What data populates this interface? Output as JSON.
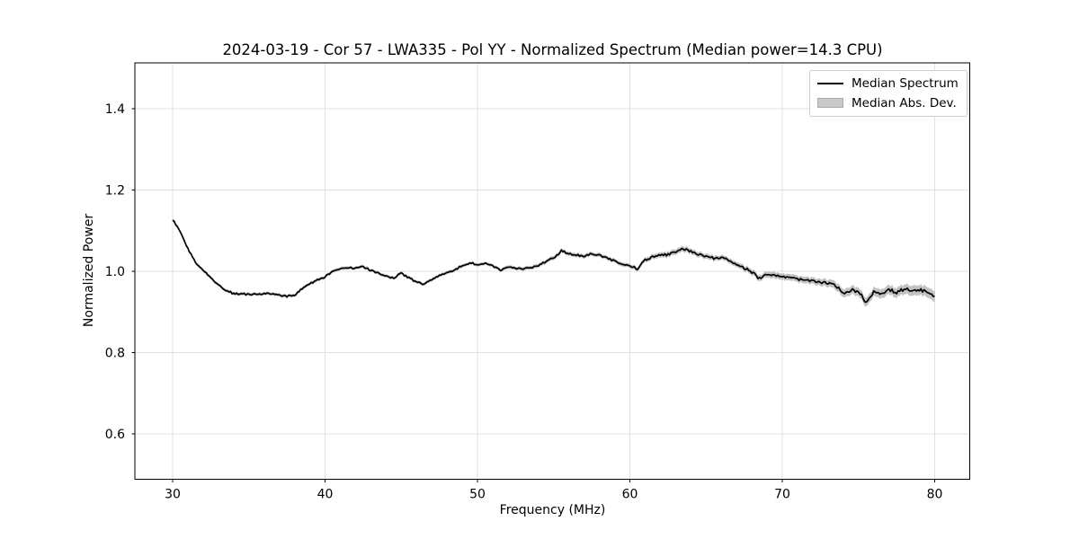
{
  "chart_data": {
    "type": "line",
    "title": "2024-03-19 - Cor 57 - LWA335 - Pol YY - Normalized Spectrum (Median power=14.3 CPU)",
    "xlabel": "Frequency (MHz)",
    "ylabel": "Normalized Power",
    "xlim": [
      27.5,
      82.3
    ],
    "ylim": [
      0.486,
      1.511
    ],
    "xticks": [
      30,
      40,
      50,
      60,
      70,
      80
    ],
    "xtick_labels": [
      "30",
      "40",
      "50",
      "60",
      "70",
      "80"
    ],
    "yticks": [
      0.6,
      0.8,
      1.0,
      1.2,
      1.4
    ],
    "ytick_labels": [
      "0.6",
      "0.8",
      "1.0",
      "1.2",
      "1.4"
    ],
    "grid": true,
    "legend_position": "upper right",
    "series": [
      {
        "name": "Median Spectrum",
        "kind": "line",
        "color": "#000000",
        "x": [
          30,
          30.5,
          31,
          31.5,
          32,
          32.5,
          33,
          33.5,
          34,
          34.5,
          35,
          35.5,
          36,
          36.5,
          37,
          37.5,
          38,
          38.5,
          39,
          39.5,
          40,
          40.5,
          41,
          41.5,
          42,
          42.5,
          43,
          43.5,
          44,
          44.5,
          45,
          45.5,
          46,
          46.5,
          47,
          47.5,
          48,
          48.5,
          49,
          49.5,
          50,
          50.5,
          51,
          51.5,
          52,
          52.5,
          53,
          53.5,
          54,
          54.5,
          55,
          55.5,
          56,
          56.5,
          57,
          57.5,
          58,
          58.5,
          59,
          59.5,
          60,
          60.5,
          61,
          61.5,
          62,
          62.5,
          63,
          63.5,
          64,
          64.5,
          65,
          65.5,
          66,
          66.5,
          67,
          67.5,
          68,
          68.5,
          69,
          69.5,
          70,
          70.5,
          71,
          71.5,
          72,
          72.5,
          73,
          73.5,
          74,
          74.5,
          75,
          75.5,
          76,
          76.5,
          77,
          77.5,
          78,
          78.5,
          79,
          79.5,
          80
        ],
        "y": [
          1.127,
          1.098,
          1.056,
          1.022,
          1.003,
          0.986,
          0.966,
          0.952,
          0.945,
          0.944,
          0.943,
          0.944,
          0.945,
          0.946,
          0.943,
          0.938,
          0.942,
          0.956,
          0.97,
          0.978,
          0.986,
          1.001,
          1.007,
          1.01,
          1.008,
          1.012,
          1.002,
          0.996,
          0.988,
          0.982,
          0.996,
          0.984,
          0.973,
          0.969,
          0.98,
          0.989,
          0.997,
          1.004,
          1.013,
          1.02,
          1.017,
          1.02,
          1.013,
          1.002,
          1.01,
          1.009,
          1.006,
          1.009,
          1.013,
          1.026,
          1.031,
          1.051,
          1.044,
          1.039,
          1.037,
          1.043,
          1.039,
          1.033,
          1.026,
          1.018,
          1.013,
          1.006,
          1.029,
          1.034,
          1.039,
          1.041,
          1.048,
          1.056,
          1.048,
          1.042,
          1.038,
          1.032,
          1.036,
          1.025,
          1.017,
          1.008,
          0.998,
          0.981,
          0.994,
          0.991,
          0.987,
          0.984,
          0.981,
          0.978,
          0.976,
          0.973,
          0.971,
          0.966,
          0.943,
          0.954,
          0.951,
          0.923,
          0.951,
          0.945,
          0.954,
          0.948,
          0.956,
          0.95,
          0.954,
          0.947,
          0.939
        ]
      },
      {
        "name": "Median Abs. Dev.",
        "kind": "band",
        "color": "#c2c2c2",
        "x": [
          30,
          40,
          50,
          55,
          60,
          63,
          66,
          68,
          70,
          72,
          74,
          76,
          78,
          80
        ],
        "half_width": [
          0.004,
          0.004,
          0.004,
          0.005,
          0.005,
          0.007,
          0.006,
          0.007,
          0.008,
          0.008,
          0.01,
          0.011,
          0.012,
          0.013
        ]
      }
    ]
  },
  "colors": {
    "line": "#000000",
    "band": "#c2c2c2",
    "grid": "#e0e0e0",
    "spine": "#000000",
    "tick": "#000000",
    "text": "#000000",
    "legend_border": "#cccccc",
    "background": "#ffffff"
  }
}
